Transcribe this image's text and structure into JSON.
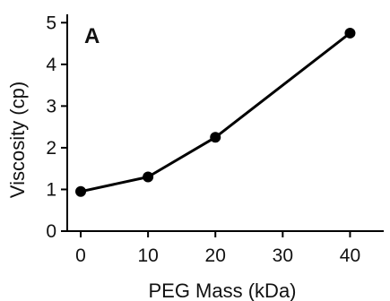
{
  "chart_data": {
    "type": "line",
    "panel_label": "A",
    "xlabel": "PEG Mass (kDa)",
    "ylabel": "Viscosity (cp)",
    "x_ticks": [
      0,
      10,
      20,
      30,
      40
    ],
    "y_ticks": [
      0,
      1,
      2,
      3,
      4,
      5
    ],
    "xlim": [
      -2,
      45
    ],
    "ylim": [
      0,
      5.2
    ],
    "grid": false,
    "series": [
      {
        "x": [
          0,
          10,
          20,
          40
        ],
        "y": [
          0.95,
          1.3,
          2.25,
          4.75
        ],
        "color": "#000000"
      }
    ]
  }
}
